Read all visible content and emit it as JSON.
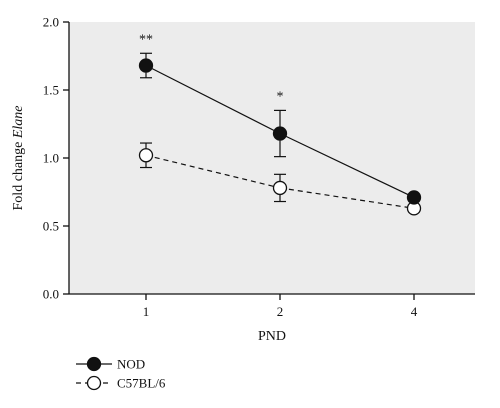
{
  "chart_data": {
    "type": "line",
    "title": "",
    "xlabel": "PND",
    "ylabel_prefix": "Fold change",
    "ylabel_gene": "Elane",
    "categories": [
      "1",
      "2",
      "4"
    ],
    "ylim": [
      0.0,
      2.0
    ],
    "yticks": [
      "0.0",
      "0.5",
      "1.0",
      "1.5",
      "2.0"
    ],
    "grid": false,
    "legend_position": "bottom-left",
    "series": [
      {
        "name": "NOD",
        "values": [
          1.68,
          1.18,
          0.71
        ],
        "errors": [
          0.09,
          0.17,
          0.02
        ],
        "marker": "filled-circle",
        "line_style": "solid",
        "significance": [
          "**",
          "*",
          ""
        ]
      },
      {
        "name": "C57BL/6",
        "values": [
          1.02,
          0.78,
          0.63
        ],
        "errors": [
          0.09,
          0.1,
          0.02
        ],
        "marker": "open-circle",
        "line_style": "dashed",
        "significance": [
          "",
          "",
          ""
        ]
      }
    ],
    "colors": {
      "ink": "#111111",
      "panel": "#ececec"
    }
  }
}
